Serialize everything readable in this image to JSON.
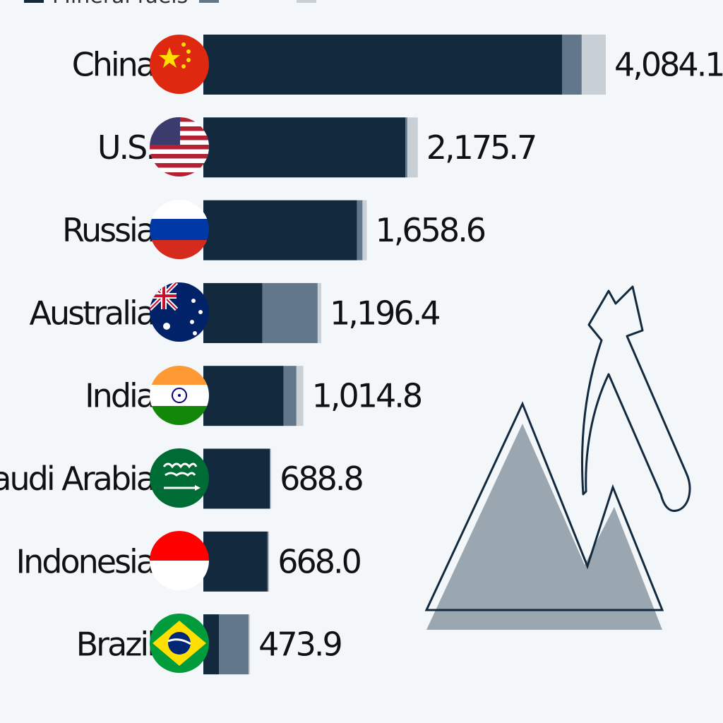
{
  "chart_data": {
    "type": "bar",
    "orientation": "horizontal",
    "stacked": true,
    "categories": [
      "China",
      "U.S.",
      "Russia",
      "Australia",
      "India",
      "Saudi Arabia",
      "Indonesia",
      "Brazil"
    ],
    "totals_labels": [
      "4,084.1",
      "2,175.7",
      "1,658.6",
      "1,196.4",
      "1,014.8",
      "688.8",
      "668.0",
      "473.9"
    ],
    "totals": [
      4084.1,
      2175.7,
      1658.6,
      1196.4,
      1014.8,
      688.8,
      668.0,
      473.9
    ],
    "series": [
      {
        "name": "Mineral fuels",
        "color": "#13293d",
        "values": [
          3640,
          2050,
          1560,
          600,
          815,
          675,
          650,
          160
        ]
      },
      {
        "color": "#62788a",
        "values": [
          200,
          20,
          55,
          560,
          130,
          5,
          10,
          300
        ]
      },
      {
        "color": "#c8cfd5",
        "values": [
          244.1,
          105.7,
          43.6,
          36.4,
          69.8,
          8.8,
          8.0,
          13.9
        ]
      }
    ],
    "xlim": [
      0,
      4084.1
    ],
    "grid": false,
    "legend": "top",
    "flags": [
      "china-flag-icon",
      "us-flag-icon",
      "russia-flag-icon",
      "australia-flag-icon",
      "india-flag-icon",
      "saudi-arabia-flag-icon",
      "indonesia-flag-icon",
      "brazil-flag-icon"
    ],
    "decoration": "mountain-pickaxe-icon"
  }
}
